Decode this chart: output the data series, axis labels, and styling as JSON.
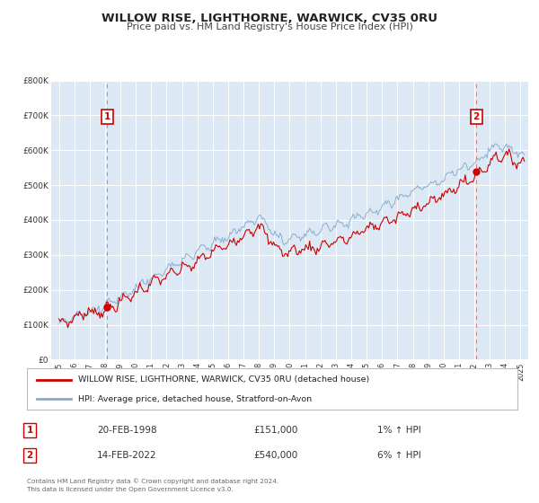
{
  "title": "WILLOW RISE, LIGHTHORNE, WARWICK, CV35 0RU",
  "subtitle": "Price paid vs. HM Land Registry's House Price Index (HPI)",
  "bg_color": "#dce9f5",
  "red_line_color": "#cc0000",
  "blue_line_color": "#88aacc",
  "marker1_date": 1998.13,
  "marker1_value": 151000,
  "marker2_date": 2022.12,
  "marker2_value": 540000,
  "vline1_x": 1998.13,
  "vline2_x": 2022.12,
  "ylim_min": 0,
  "ylim_max": 800000,
  "yticks": [
    0,
    100000,
    200000,
    300000,
    400000,
    500000,
    600000,
    700000,
    800000
  ],
  "ytick_labels": [
    "£0",
    "£100K",
    "£200K",
    "£300K",
    "£400K",
    "£500K",
    "£600K",
    "£700K",
    "£800K"
  ],
  "xlim_min": 1994.5,
  "xlim_max": 2025.5,
  "xticks": [
    1995,
    1996,
    1997,
    1998,
    1999,
    2000,
    2001,
    2002,
    2003,
    2004,
    2005,
    2006,
    2007,
    2008,
    2009,
    2010,
    2011,
    2012,
    2013,
    2014,
    2015,
    2016,
    2017,
    2018,
    2019,
    2020,
    2021,
    2022,
    2023,
    2024,
    2025
  ],
  "legend_label_red": "WILLOW RISE, LIGHTHORNE, WARWICK, CV35 0RU (detached house)",
  "legend_label_blue": "HPI: Average price, detached house, Stratford-on-Avon",
  "table_row1": [
    "1",
    "20-FEB-1998",
    "£151,000",
    "1% ↑ HPI"
  ],
  "table_row2": [
    "2",
    "14-FEB-2022",
    "£540,000",
    "6% ↑ HPI"
  ],
  "footer1": "Contains HM Land Registry data © Crown copyright and database right 2024.",
  "footer2": "This data is licensed under the Open Government Licence v3.0."
}
